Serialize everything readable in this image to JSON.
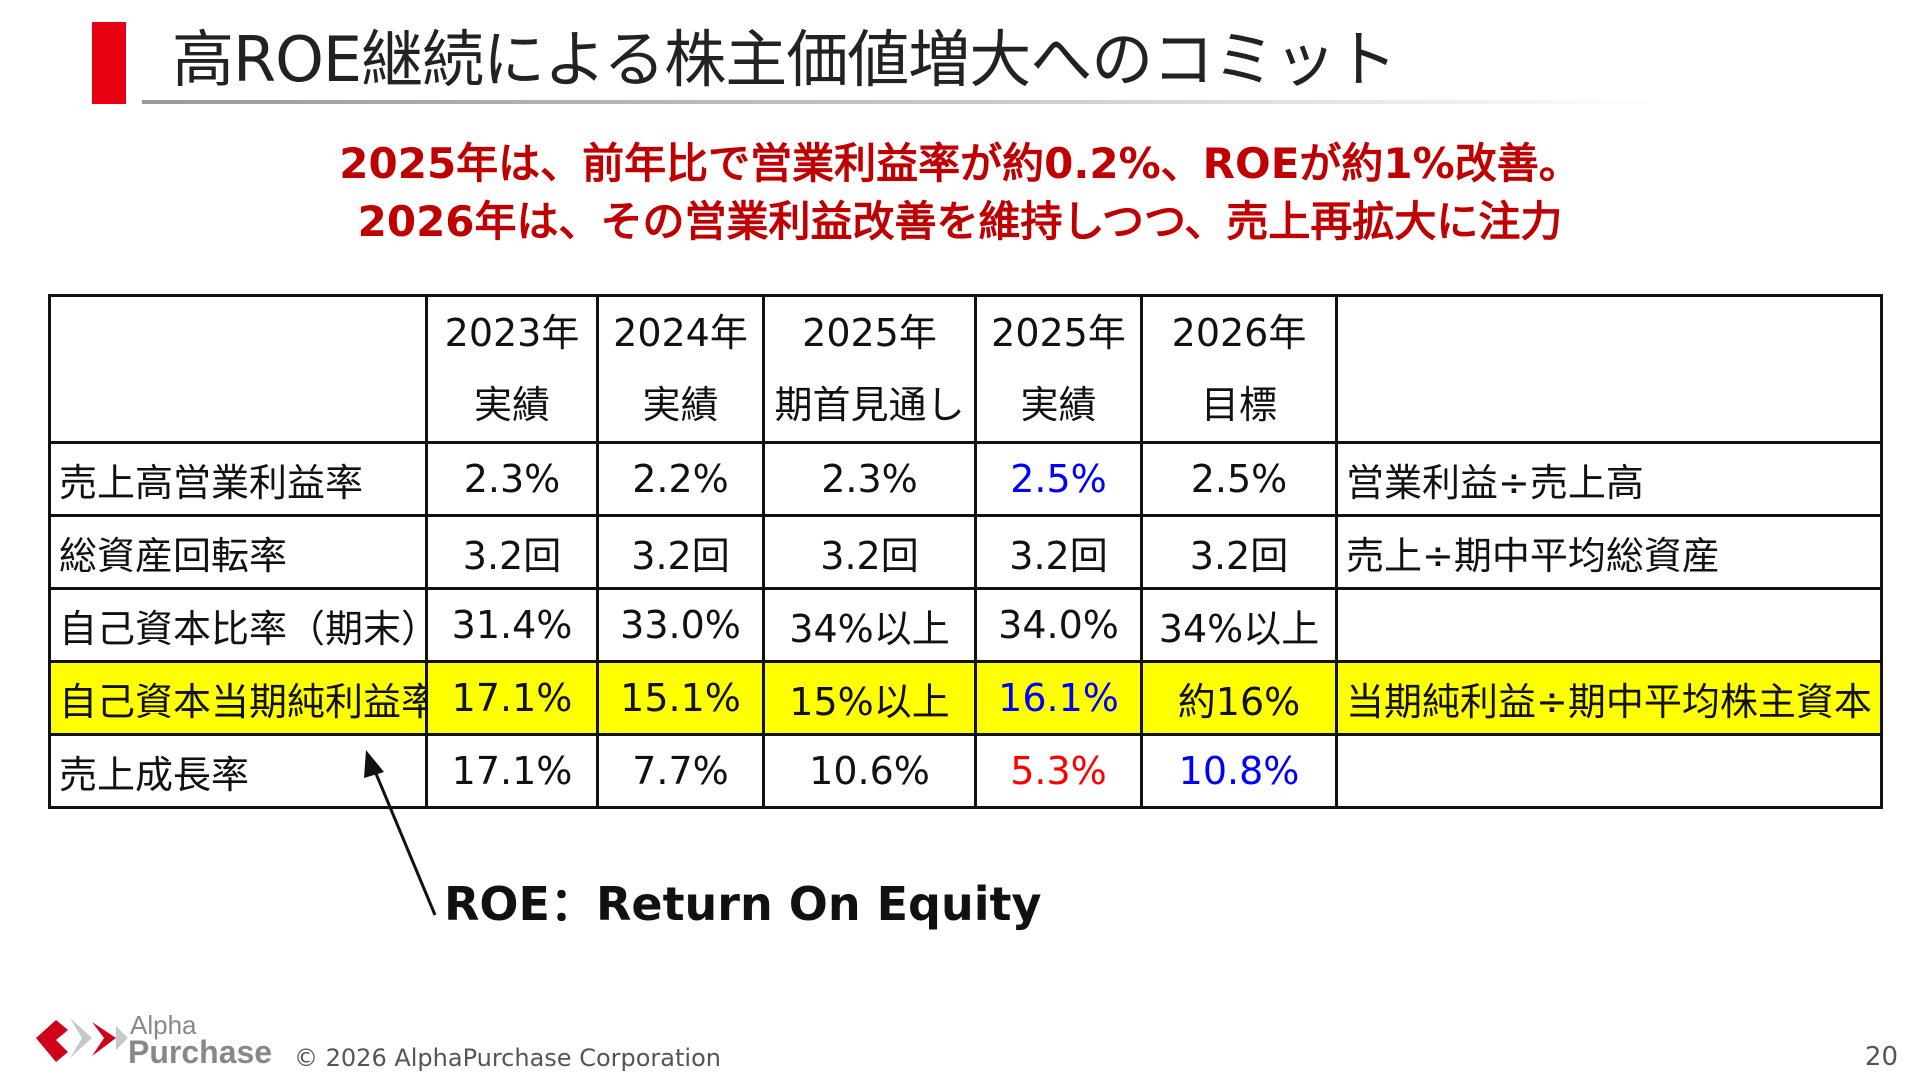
{
  "title": "高ROE継続による株主価値増大へのコミット",
  "subtitle": {
    "line1": "2025年は、前年比で営業利益率が約0.2%、ROEが約1%改善。",
    "line2": "2026年は、その営業利益改善を維持しつつ、売上再拡大に注力"
  },
  "table": {
    "headers": [
      {
        "year": "",
        "type": ""
      },
      {
        "year": "2023年",
        "type": "実績"
      },
      {
        "year": "2024年",
        "type": "実績"
      },
      {
        "year": "2025年",
        "type": "期首見通し"
      },
      {
        "year": "2025年",
        "type": "実績"
      },
      {
        "year": "2026年",
        "type": "目標"
      },
      {
        "year": "",
        "type": ""
      }
    ],
    "rows": [
      {
        "label": "売上高営業利益率",
        "values": [
          "2.3%",
          "2.2%",
          "2.3%",
          "2.5%",
          "2.5%"
        ],
        "note": "営業利益÷売上高"
      },
      {
        "label": "総資産回転率",
        "values": [
          "3.2回",
          "3.2回",
          "3.2回",
          "3.2回",
          "3.2回"
        ],
        "note": "売上÷期中平均総資産"
      },
      {
        "label": "自己資本比率（期末）",
        "values": [
          "31.4%",
          "33.0%",
          "34%以上",
          "34.0%",
          "34%以上"
        ],
        "note": ""
      },
      {
        "label": "自己資本当期純利益率",
        "values": [
          "17.1%",
          "15.1%",
          "15%以上",
          "16.1%",
          "約16%"
        ],
        "note": "当期純利益÷期中平均株主資本"
      },
      {
        "label": "売上成長率",
        "values": [
          "17.1%",
          "7.7%",
          "10.6%",
          "5.3%",
          "10.8%"
        ],
        "note": ""
      }
    ],
    "highlight_color": "#ffff00"
  },
  "roe_note": "ROE：Return On Equity",
  "footer": {
    "brand_line1": "Alpha",
    "brand_line2": "Purchase",
    "copyright": "© 2026 AlphaPurchase Corporation",
    "page_number": "20"
  },
  "colors": {
    "accent_red": "#e60012",
    "subtitle_red": "#c00000",
    "value_blue": "#0000ff",
    "value_red": "#ff0000"
  }
}
